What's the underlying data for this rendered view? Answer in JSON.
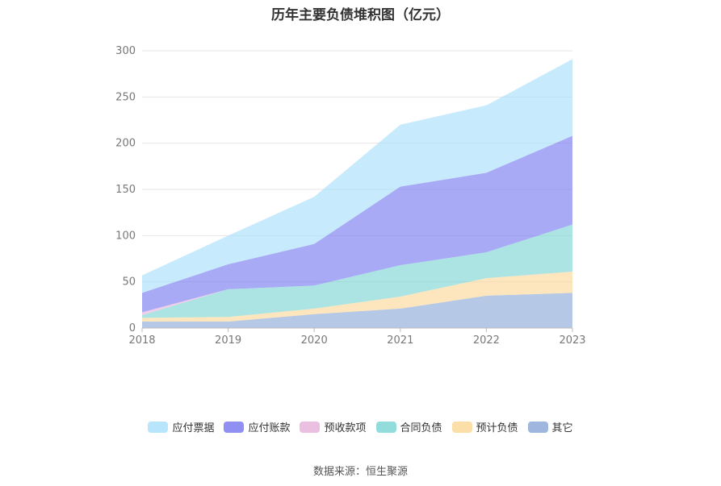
{
  "chart_data": {
    "type": "area",
    "stacked": true,
    "title": "历年主要负债堆积图（亿元）",
    "categories": [
      "2018",
      "2019",
      "2020",
      "2021",
      "2022",
      "2023"
    ],
    "ylim": [
      0,
      300
    ],
    "yticks": [
      0,
      50,
      100,
      150,
      200,
      250,
      300
    ],
    "grid": true,
    "legend_position": "bottom",
    "series": [
      {
        "name": "其它",
        "values": [
          7,
          7,
          15,
          21,
          35,
          38
        ],
        "color": "#8eaad9"
      },
      {
        "name": "预计负债",
        "values": [
          4,
          5,
          6,
          13,
          19,
          23
        ],
        "color": "#fcd89a"
      },
      {
        "name": "合同负债",
        "values": [
          3,
          30,
          25,
          34,
          28,
          51
        ],
        "color": "#80d6d6"
      },
      {
        "name": "预收款项",
        "values": [
          3,
          0,
          0,
          0,
          0,
          0
        ],
        "color": "#e8b4db"
      },
      {
        "name": "应付账款",
        "values": [
          21,
          27,
          45,
          85,
          86,
          96
        ],
        "color": "#7b7cf0"
      },
      {
        "name": "应付票据",
        "values": [
          19,
          31,
          51,
          67,
          73,
          83
        ],
        "color": "#a9e0fb"
      }
    ]
  },
  "legend_order": [
    "应付票据",
    "应付账款",
    "预收款项",
    "合同负债",
    "预计负债",
    "其它"
  ],
  "source_text": "数据来源：恒生聚源"
}
